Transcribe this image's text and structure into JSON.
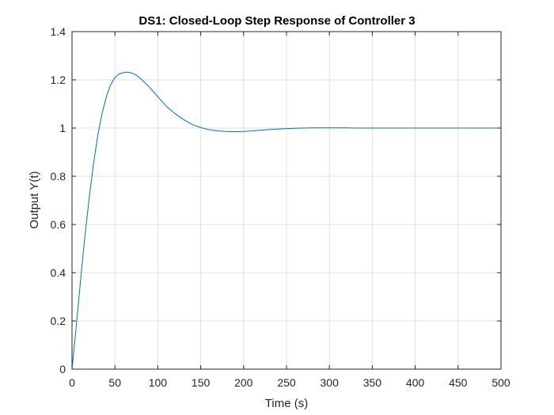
{
  "chart_data": {
    "type": "line",
    "title": "DS1: Closed-Loop Step Response of Controller 3",
    "xlabel": "Time (s)",
    "ylabel": "Output Y(t)",
    "xlim": [
      0,
      500
    ],
    "ylim": [
      0,
      1.4
    ],
    "xticks": [
      "0",
      "50",
      "100",
      "150",
      "200",
      "250",
      "300",
      "350",
      "400",
      "450",
      "500"
    ],
    "yticks": [
      "0",
      "0.2",
      "0.4",
      "0.6",
      "0.8",
      "1",
      "1.2",
      "1.4"
    ],
    "grid": true,
    "series": [
      {
        "color": "#0072BD",
        "x": [
          0,
          5,
          10,
          15,
          20,
          25,
          30,
          35,
          40,
          45,
          50,
          55,
          60,
          65,
          70,
          75,
          80,
          85,
          90,
          95,
          100,
          110,
          120,
          130,
          140,
          150,
          160,
          170,
          180,
          190,
          200,
          210,
          220,
          230,
          240,
          250,
          260,
          270,
          280,
          290,
          300,
          310,
          320,
          330,
          340,
          350,
          360,
          380,
          400,
          420,
          440,
          460,
          480,
          500
        ],
        "y": [
          0,
          0.18,
          0.37,
          0.55,
          0.71,
          0.85,
          0.97,
          1.06,
          1.13,
          1.18,
          1.21,
          1.225,
          1.23,
          1.232,
          1.228,
          1.219,
          1.205,
          1.188,
          1.17,
          1.15,
          1.13,
          1.09,
          1.06,
          1.035,
          1.015,
          1.002,
          0.993,
          0.988,
          0.986,
          0.985,
          0.986,
          0.988,
          0.991,
          0.994,
          0.996,
          0.998,
          0.999,
          1.0,
          1.001,
          1.001,
          1.001,
          1.001,
          1.001,
          1.0,
          1.0,
          1.0,
          1.0,
          1.0,
          1.0,
          1.0,
          1.0,
          1.0,
          1.0,
          1.0
        ]
      }
    ]
  }
}
